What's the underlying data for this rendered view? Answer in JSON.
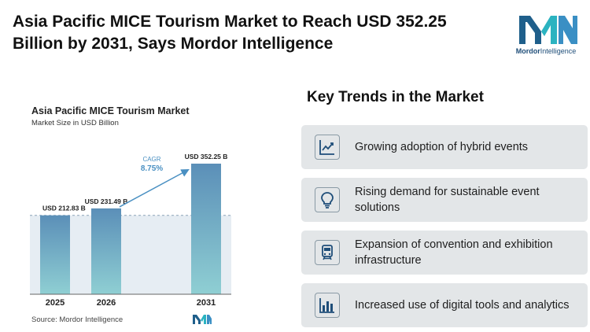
{
  "header": {
    "line1": "Asia Pacific MICE Tourism Market to Reach USD 352.25",
    "line2": "Billion by 2031, Says Mordor Intelligence"
  },
  "logo": {
    "word1": "Mordor",
    "word2": "Intelligence"
  },
  "chart_data": {
    "type": "bar",
    "title": "Asia Pacific MICE Tourism Market",
    "subtitle": "Market Size in USD Billion",
    "categories": [
      "2025",
      "2026",
      "2031"
    ],
    "values": [
      212.83,
      231.49,
      352.25
    ],
    "value_labels": [
      "USD 212.83 B",
      "USD 231.49 B",
      "USD 352.25 B"
    ],
    "cagr_label": "CAGR",
    "cagr_value": "8.75%",
    "source": "Source:  Mordor Intelligence",
    "colors": {
      "bar_top": "#5b8fb8",
      "bar_bottom": "#8fcfd3",
      "cagr": "#4a90c2",
      "band": "#dde7ef"
    }
  },
  "trends": {
    "title": "Key Trends in the Market",
    "items": [
      {
        "icon": "line-chart-icon",
        "text": "Growing adoption of hybrid events"
      },
      {
        "icon": "lightbulb-icon",
        "text": "Rising demand for sustainable event solutions"
      },
      {
        "icon": "train-icon",
        "text": "Expansion of convention and exhibition infrastructure"
      },
      {
        "icon": "bar-chart-icon",
        "text": "Increased use of digital tools and analytics"
      }
    ]
  }
}
